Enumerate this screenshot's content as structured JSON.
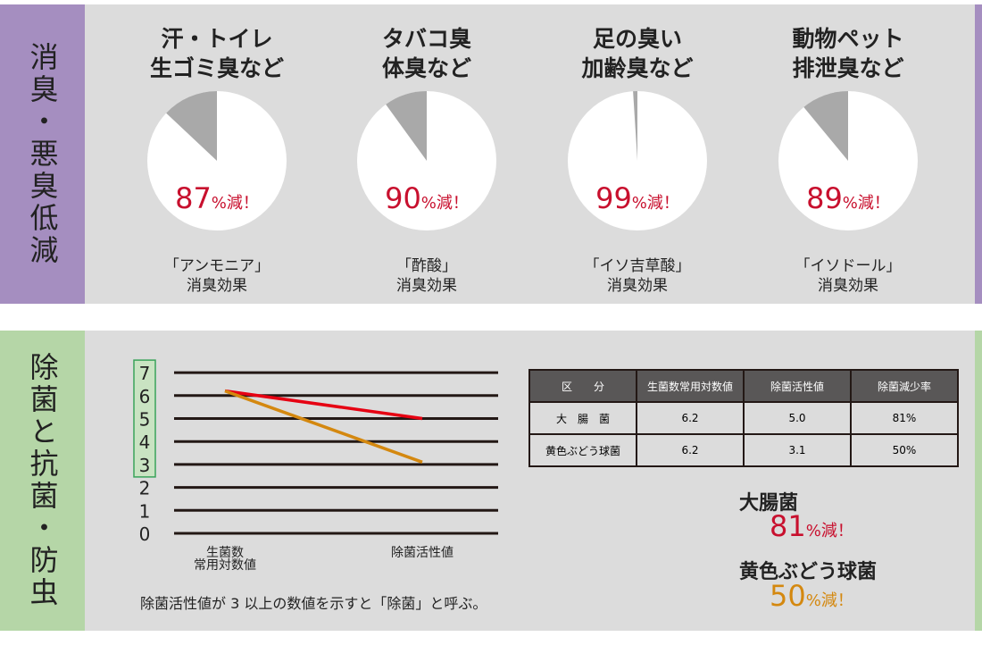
{
  "top": {
    "label": "消臭・悪臭低減",
    "accent": "#a58ec0",
    "cards": [
      {
        "title1": "汗・トイレ",
        "title2": "生ゴミ臭など",
        "value": "87",
        "unit": "%減！",
        "cap1": "「アンモニア」",
        "cap2": "消臭効果",
        "reduction": 87
      },
      {
        "title1": "タバコ臭",
        "title2": "体臭など",
        "value": "90",
        "unit": "%減！",
        "cap1": "「酢酸」",
        "cap2": "消臭効果",
        "reduction": 90
      },
      {
        "title1": "足の臭い",
        "title2": "加齢臭など",
        "value": "99",
        "unit": "%減！",
        "cap1": "「イソ吉草酸」",
        "cap2": "消臭効果",
        "reduction": 99
      },
      {
        "title1": "動物ペット",
        "title2": "排泄臭など",
        "value": "89",
        "unit": "%減！",
        "cap1": "「イソドール」",
        "cap2": "消臭効果",
        "reduction": 89
      }
    ]
  },
  "bottom": {
    "label": "除菌と抗菌・防虫",
    "accent": "#b5d6a7",
    "note": "除菌活性値が 3 以上の数値を示すと「除菌」と呼ぶ。",
    "table": {
      "headers": [
        "区　　分",
        "生菌数常用対数値",
        "除菌活性値",
        "除菌減少率"
      ],
      "rows": [
        [
          "大　腸　菌",
          "6.2",
          "5.0",
          "81%"
        ],
        [
          "黄色ぶどう球菌",
          "6.2",
          "3.1",
          "50%"
        ]
      ]
    },
    "results": [
      {
        "name": "大腸菌",
        "value": "81",
        "unit": "%減！",
        "color": "#c8102e"
      },
      {
        "name": "黄色ぶどう球菌",
        "value": "50",
        "unit": "%減！",
        "color": "#d4880f"
      }
    ]
  },
  "chart_data": {
    "type": "line",
    "x": [
      "生菌数\n常用対数値",
      "除菌活性値"
    ],
    "xlabels": [
      "生菌数",
      "常用対数値",
      "除菌活性値"
    ],
    "yticks": [
      "0",
      "1",
      "2",
      "3",
      "4",
      "5",
      "6",
      "7"
    ],
    "ylim": [
      0,
      7
    ],
    "grid": true,
    "highlight_range": [
      3,
      7
    ],
    "series": [
      {
        "values": [
          6.2,
          5.0
        ],
        "color": "#e60012"
      },
      {
        "values": [
          6.2,
          3.1
        ],
        "color": "#d4880f"
      }
    ]
  }
}
